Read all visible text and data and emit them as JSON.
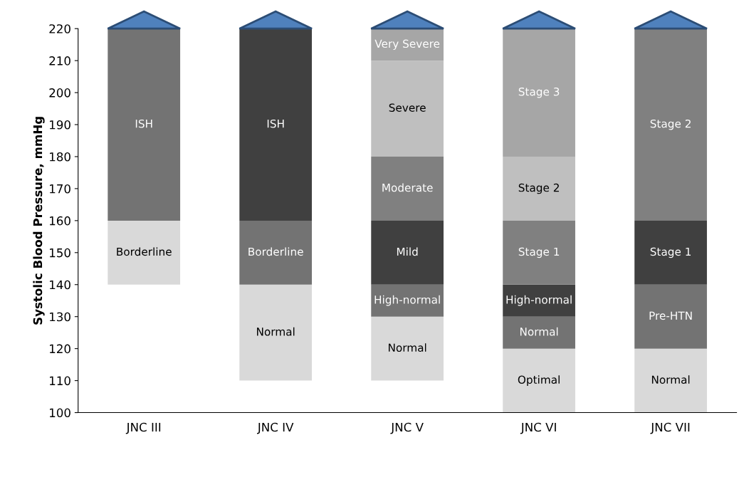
{
  "chart_data": {
    "type": "bar",
    "ylabel": "Systolic Blood Pressure, mmHg",
    "categories": [
      "JNC III",
      "JNC IV",
      "JNC V",
      "JNC VI",
      "JNC VII"
    ],
    "series": [
      {
        "colors": [
          "#d9d9d9",
          "#d9d9d9",
          "#d9d9d9",
          "#d9d9d9",
          "#d9d9d9"
        ],
        "base": [
          140,
          110,
          110,
          100,
          100
        ],
        "values": [
          20,
          30,
          20,
          20,
          20
        ],
        "value_labels": [
          "Borderline",
          "Normal",
          "Normal",
          "Optimal",
          "Normal"
        ]
      },
      {
        "colors": [
          "#737373",
          "#737373",
          "#737373",
          "#737373",
          "#737373"
        ],
        "base": [
          160,
          140,
          130,
          120,
          120
        ],
        "values": [
          60,
          20,
          10,
          10,
          20
        ],
        "value_labels": [
          "ISH",
          "Borderline",
          "High-normal",
          "Normal",
          "Pre-HTN"
        ]
      },
      {
        "colors": [
          null,
          "#404040",
          "#404040",
          "#404040",
          "#404040"
        ],
        "base": [
          null,
          160,
          140,
          130,
          140
        ],
        "values": [
          null,
          60,
          20,
          10,
          20
        ],
        "value_labels": [
          null,
          "ISH",
          "Mild",
          "High-normal",
          "Stage 1"
        ]
      },
      {
        "colors": [
          null,
          null,
          "#808080",
          "#808080",
          "#808080"
        ],
        "base": [
          null,
          null,
          160,
          140,
          160
        ],
        "values": [
          null,
          null,
          20,
          20,
          60
        ],
        "value_labels": [
          null,
          null,
          "Moderate",
          "Stage 1",
          "Stage 2"
        ]
      },
      {
        "colors": [
          null,
          null,
          "#bfbfbf",
          "#bfbfbf",
          null
        ],
        "base": [
          null,
          null,
          180,
          160,
          null
        ],
        "values": [
          null,
          null,
          30,
          20,
          null
        ],
        "value_labels": [
          null,
          null,
          "Severe",
          "Stage 2",
          null
        ]
      },
      {
        "colors": [
          null,
          null,
          "#a6a6a6",
          "#a6a6a6",
          null
        ],
        "base": [
          null,
          null,
          210,
          180,
          null
        ],
        "values": [
          null,
          null,
          10,
          40,
          null
        ],
        "value_labels": [
          null,
          null,
          "Very Severe",
          "Stage 3",
          null
        ]
      }
    ],
    "ylim": [
      100,
      220
    ],
    "yticks": [
      100,
      110,
      120,
      130,
      140,
      150,
      160,
      170,
      180,
      190,
      200,
      210,
      220
    ]
  }
}
